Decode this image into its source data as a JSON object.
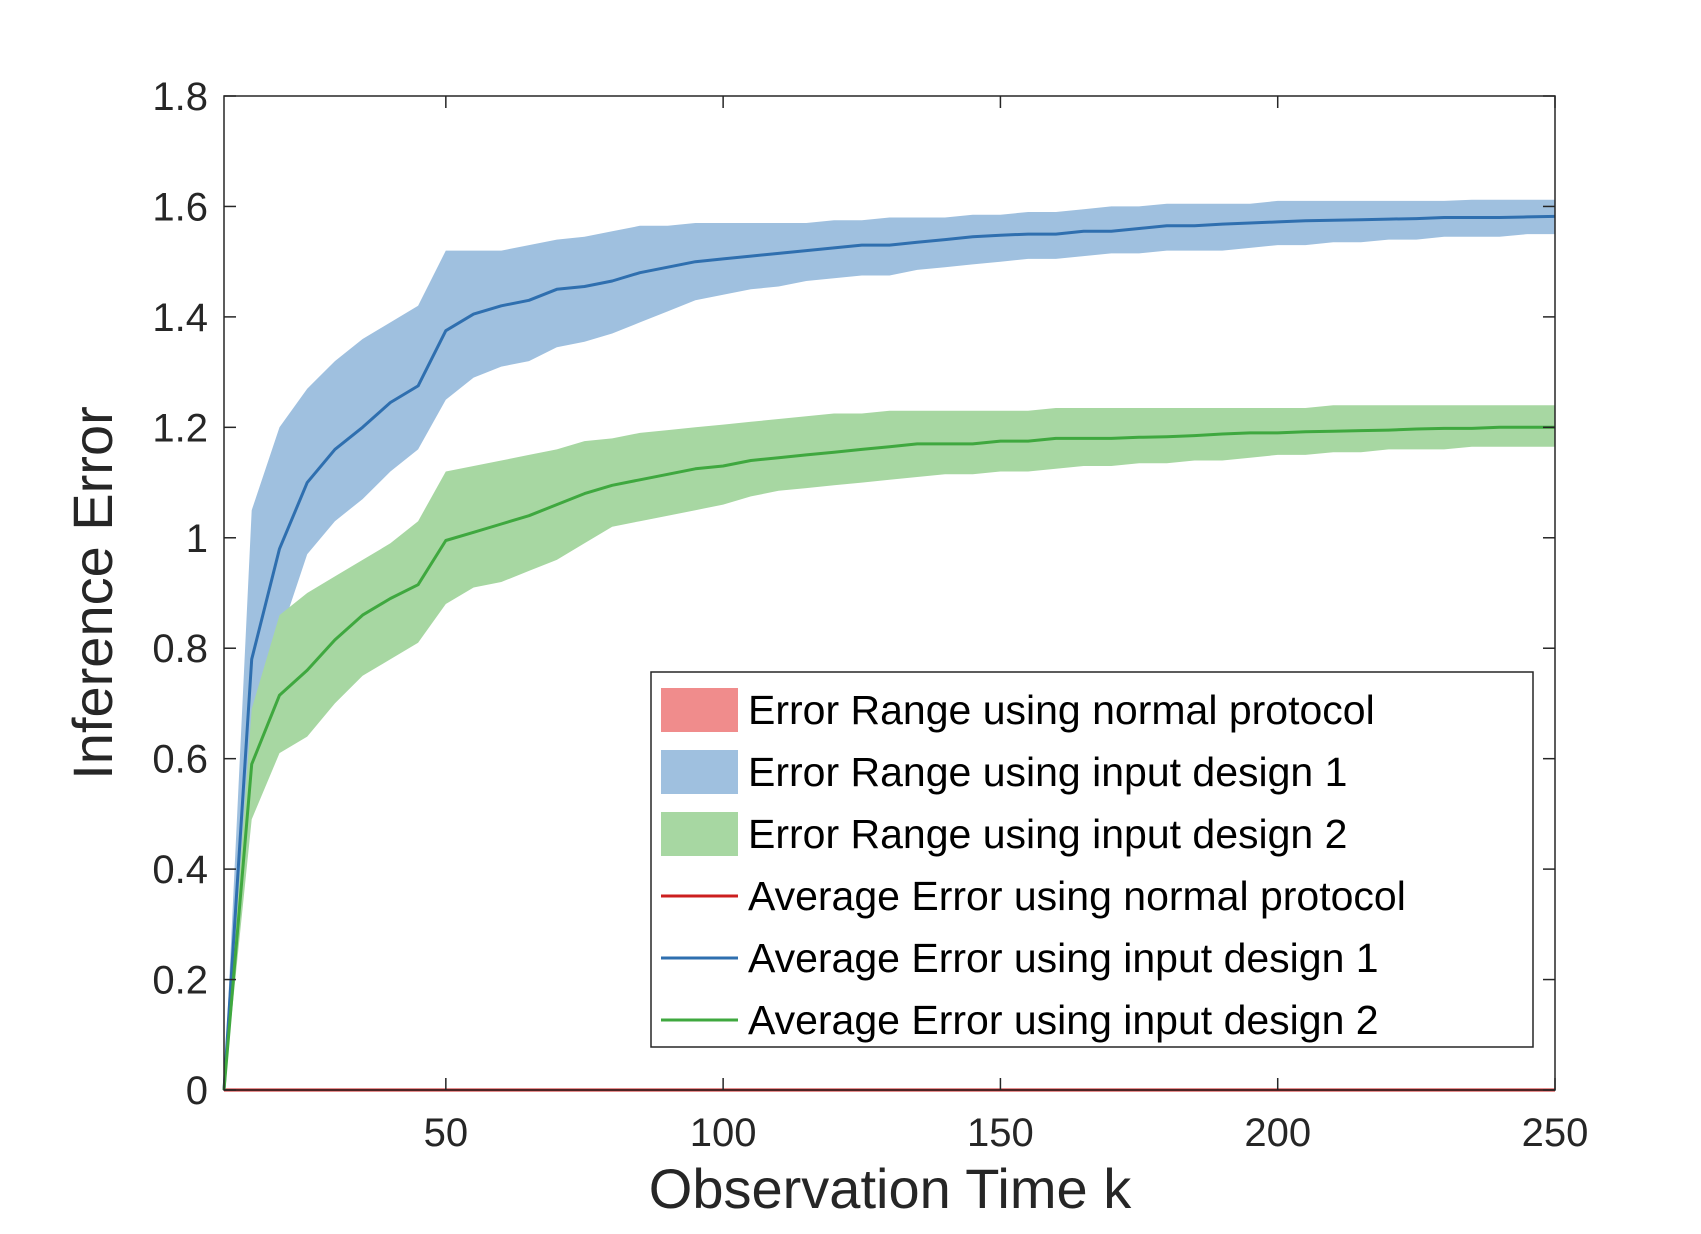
{
  "chart_data": {
    "type": "line",
    "title": "",
    "xlabel": "Observation Time k",
    "ylabel": "Inference Error",
    "xlim": [
      10,
      250
    ],
    "ylim": [
      0,
      1.8
    ],
    "xticks": [
      50,
      100,
      150,
      200,
      250
    ],
    "xtick_labels": [
      "50",
      "100",
      "150",
      "200",
      "250"
    ],
    "yticks": [
      0,
      0.2,
      0.4,
      0.6,
      0.8,
      1,
      1.2,
      1.4,
      1.6,
      1.8
    ],
    "ytick_labels": [
      "0",
      "0.2",
      "0.4",
      "0.6",
      "0.8",
      "1",
      "1.2",
      "1.4",
      "1.6",
      "1.8"
    ],
    "grid": false,
    "legend_position": "bottom-right",
    "x": [
      10,
      15,
      20,
      25,
      30,
      35,
      40,
      45,
      50,
      55,
      60,
      65,
      70,
      75,
      80,
      85,
      90,
      95,
      100,
      105,
      110,
      115,
      120,
      125,
      130,
      135,
      140,
      145,
      150,
      155,
      160,
      165,
      170,
      175,
      180,
      185,
      190,
      195,
      200,
      205,
      210,
      215,
      220,
      225,
      230,
      235,
      240,
      245,
      250
    ],
    "bands": [
      {
        "name": "Error Range using normal protocol",
        "color": "#f08c8c",
        "lower": [
          0,
          0,
          0,
          0,
          0,
          0,
          0,
          0,
          0,
          0,
          0,
          0,
          0,
          0,
          0,
          0,
          0,
          0,
          0,
          0,
          0,
          0,
          0,
          0,
          0,
          0,
          0,
          0,
          0,
          0,
          0,
          0,
          0,
          0,
          0,
          0,
          0,
          0,
          0,
          0,
          0,
          0,
          0,
          0,
          0,
          0,
          0,
          0,
          0
        ],
        "upper": [
          0,
          0,
          0,
          0,
          0,
          0,
          0,
          0,
          0,
          0,
          0,
          0,
          0,
          0,
          0,
          0,
          0,
          0,
          0,
          0,
          0,
          0,
          0,
          0,
          0,
          0,
          0,
          0,
          0,
          0,
          0,
          0,
          0,
          0,
          0,
          0,
          0,
          0,
          0,
          0,
          0,
          0,
          0,
          0,
          0,
          0,
          0,
          0,
          0
        ]
      },
      {
        "name": "Error Range using input design 1",
        "color": "#9fc0df",
        "lower": [
          0,
          0.62,
          0.82,
          0.97,
          1.03,
          1.07,
          1.12,
          1.16,
          1.25,
          1.29,
          1.31,
          1.32,
          1.345,
          1.355,
          1.37,
          1.39,
          1.41,
          1.43,
          1.44,
          1.45,
          1.455,
          1.465,
          1.47,
          1.475,
          1.475,
          1.485,
          1.49,
          1.495,
          1.5,
          1.505,
          1.505,
          1.51,
          1.515,
          1.515,
          1.52,
          1.52,
          1.52,
          1.525,
          1.53,
          1.53,
          1.535,
          1.535,
          1.54,
          1.54,
          1.545,
          1.545,
          1.545,
          1.55,
          1.55
        ],
        "upper": [
          0,
          1.05,
          1.2,
          1.27,
          1.32,
          1.36,
          1.39,
          1.42,
          1.52,
          1.52,
          1.52,
          1.53,
          1.54,
          1.545,
          1.555,
          1.565,
          1.565,
          1.57,
          1.57,
          1.57,
          1.57,
          1.57,
          1.575,
          1.575,
          1.58,
          1.58,
          1.58,
          1.585,
          1.585,
          1.59,
          1.59,
          1.595,
          1.6,
          1.6,
          1.605,
          1.605,
          1.605,
          1.605,
          1.61,
          1.61,
          1.61,
          1.61,
          1.61,
          1.61,
          1.61,
          1.612,
          1.612,
          1.612,
          1.612
        ]
      },
      {
        "name": "Error Range using input design 2",
        "color": "#a7d7a2",
        "lower": [
          0,
          0.49,
          0.61,
          0.64,
          0.7,
          0.75,
          0.78,
          0.81,
          0.88,
          0.91,
          0.92,
          0.94,
          0.96,
          0.99,
          1.02,
          1.03,
          1.04,
          1.05,
          1.06,
          1.075,
          1.085,
          1.09,
          1.095,
          1.1,
          1.105,
          1.11,
          1.115,
          1.115,
          1.12,
          1.12,
          1.125,
          1.13,
          1.13,
          1.135,
          1.135,
          1.14,
          1.14,
          1.145,
          1.15,
          1.15,
          1.155,
          1.155,
          1.16,
          1.16,
          1.16,
          1.165,
          1.165,
          1.165,
          1.165
        ],
        "upper": [
          0,
          0.69,
          0.86,
          0.9,
          0.93,
          0.96,
          0.99,
          1.03,
          1.12,
          1.13,
          1.14,
          1.15,
          1.16,
          1.175,
          1.18,
          1.19,
          1.195,
          1.2,
          1.205,
          1.21,
          1.215,
          1.22,
          1.225,
          1.225,
          1.23,
          1.23,
          1.23,
          1.23,
          1.23,
          1.23,
          1.235,
          1.235,
          1.235,
          1.235,
          1.235,
          1.235,
          1.235,
          1.235,
          1.235,
          1.235,
          1.24,
          1.24,
          1.24,
          1.24,
          1.24,
          1.24,
          1.24,
          1.24,
          1.24
        ]
      }
    ],
    "series": [
      {
        "name": "Average Error using normal protocol",
        "color": "#cc1f1f",
        "values": [
          0,
          0,
          0,
          0,
          0,
          0,
          0,
          0,
          0,
          0,
          0,
          0,
          0,
          0,
          0,
          0,
          0,
          0,
          0,
          0,
          0,
          0,
          0,
          0,
          0,
          0,
          0,
          0,
          0,
          0,
          0,
          0,
          0,
          0,
          0,
          0,
          0,
          0,
          0,
          0,
          0,
          0,
          0,
          0,
          0,
          0,
          0,
          0,
          0
        ]
      },
      {
        "name": "Average Error using input design 1",
        "color": "#2f6faf",
        "values": [
          0,
          0.78,
          0.98,
          1.1,
          1.16,
          1.2,
          1.245,
          1.275,
          1.375,
          1.405,
          1.42,
          1.43,
          1.45,
          1.455,
          1.465,
          1.48,
          1.49,
          1.5,
          1.505,
          1.51,
          1.515,
          1.52,
          1.525,
          1.53,
          1.53,
          1.535,
          1.54,
          1.545,
          1.548,
          1.55,
          1.55,
          1.555,
          1.555,
          1.56,
          1.565,
          1.565,
          1.568,
          1.57,
          1.572,
          1.574,
          1.575,
          1.576,
          1.577,
          1.578,
          1.58,
          1.58,
          1.58,
          1.581,
          1.582
        ]
      },
      {
        "name": "Average Error using input design 2",
        "color": "#3fa83f",
        "values": [
          0,
          0.59,
          0.715,
          0.76,
          0.815,
          0.86,
          0.89,
          0.915,
          0.995,
          1.01,
          1.025,
          1.04,
          1.06,
          1.08,
          1.095,
          1.105,
          1.115,
          1.125,
          1.13,
          1.14,
          1.145,
          1.15,
          1.155,
          1.16,
          1.165,
          1.17,
          1.17,
          1.17,
          1.175,
          1.175,
          1.18,
          1.18,
          1.18,
          1.182,
          1.183,
          1.185,
          1.188,
          1.19,
          1.19,
          1.192,
          1.193,
          1.194,
          1.195,
          1.197,
          1.198,
          1.198,
          1.2,
          1.2,
          1.2
        ]
      }
    ]
  }
}
